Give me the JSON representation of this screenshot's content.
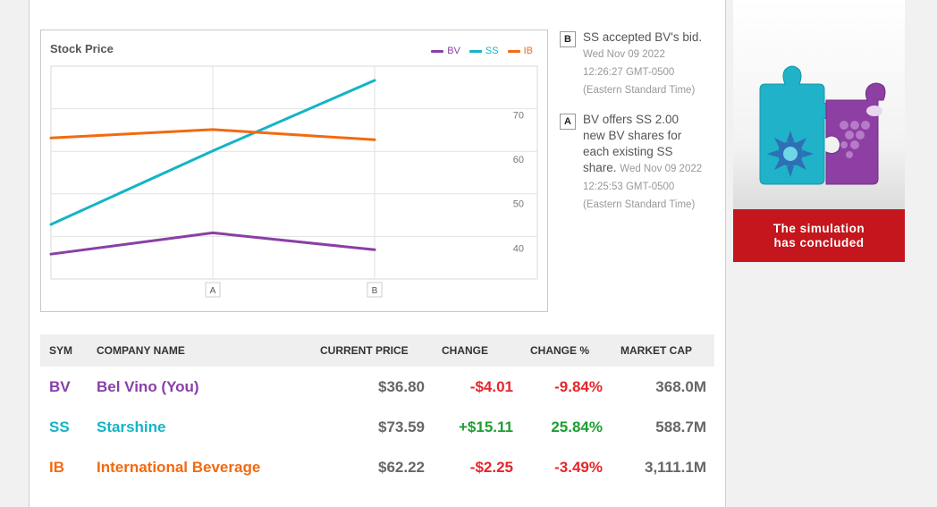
{
  "chart": {
    "title": "Stock Price",
    "legend": [
      {
        "label": "BV",
        "color": "#8a3fa6"
      },
      {
        "label": "SS",
        "color": "#14b4c6"
      },
      {
        "label": "IB",
        "color": "#f26a10"
      }
    ]
  },
  "chart_data": {
    "type": "line",
    "title": "Stock Price",
    "x": [
      "",
      "A",
      "B"
    ],
    "y_ticks": [
      40,
      50,
      60,
      70
    ],
    "ylim": [
      33,
      81
    ],
    "grid": true,
    "legend_position": "top-right",
    "series": [
      {
        "name": "BV",
        "color": "#8a3fa6",
        "values": [
          38.6,
          43.4,
          39.6
        ]
      },
      {
        "name": "SS",
        "color": "#14b4c6",
        "values": [
          45.3,
          61.9,
          77.8
        ]
      },
      {
        "name": "IB",
        "color": "#f26a10",
        "values": [
          64.8,
          66.7,
          64.4
        ]
      }
    ]
  },
  "events": [
    {
      "tag": "B",
      "text": "SS accepted BV's bid.",
      "time": "Wed Nov 09 2022 12:26:27 GMT-0500 (Eastern Standard Time)"
    },
    {
      "tag": "A",
      "text": "BV offers SS 2.00 new BV shares for each existing SS share.",
      "time": "Wed Nov 09 2022 12:25:53 GMT-0500 (Eastern Standard Time)"
    }
  ],
  "table": {
    "headers": {
      "sym": "SYM",
      "name": "COMPANY NAME",
      "price": "CURRENT PRICE",
      "change": "CHANGE",
      "pct": "CHANGE %",
      "cap": "MARKET CAP"
    },
    "rows": [
      {
        "sym": "BV",
        "name": "Bel Vino (You)",
        "price": "$36.80",
        "change": "-$4.01",
        "pct": "-9.84%",
        "cap": "368.0M",
        "color": "#8a3fa6"
      },
      {
        "sym": "SS",
        "name": "Starshine",
        "price": "$73.59",
        "change": "+$15.11",
        "pct": "25.84%",
        "cap": "588.7M",
        "color": "#14b4c6"
      },
      {
        "sym": "IB",
        "name": "International Beverage",
        "price": "$62.22",
        "change": "-$2.25",
        "pct": "-3.49%",
        "cap": "3,111.1M",
        "color": "#f26a10"
      }
    ]
  },
  "side_panel": {
    "line1": "The simulation",
    "line2": "has concluded",
    "banner_color": "#c4161c"
  }
}
